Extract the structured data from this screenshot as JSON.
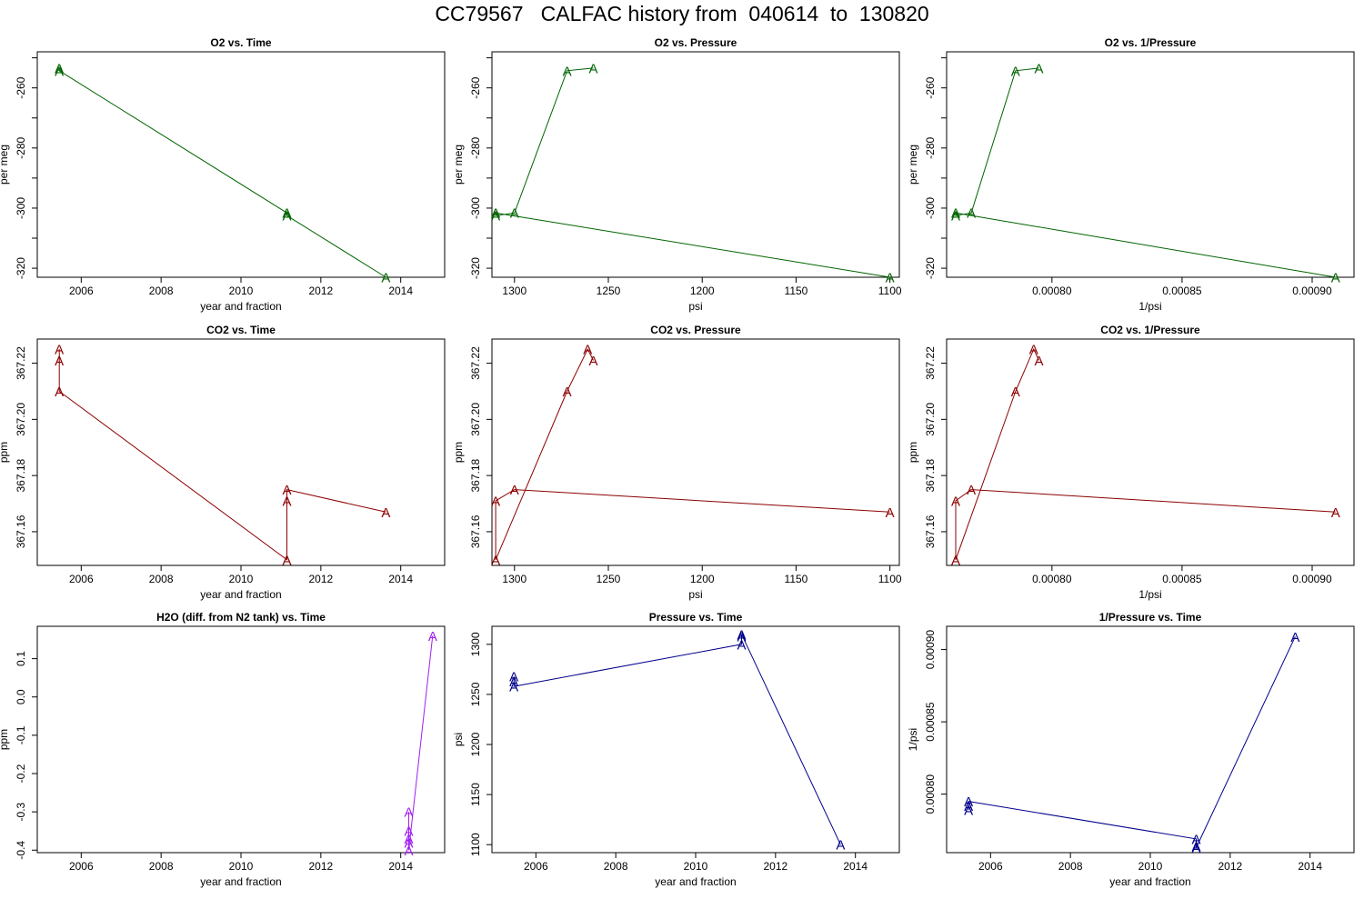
{
  "title": "CC79567   CALFAC history from  040614  to  130820",
  "colors": {
    "o2": "#006400",
    "co2": "#8b0000",
    "h2o": "#a020f0",
    "pressure": "#00008b",
    "axis": "#000000"
  },
  "marker_label": "A",
  "chart_data": [
    {
      "type": "line",
      "title": "O2 vs. Time",
      "xlabel": "year and fraction",
      "ylabel": "per meg",
      "xlim": [
        2004.9,
        2015.1
      ],
      "ylim": [
        -323,
        -248
      ],
      "reversed_x": false,
      "color_key": "o2",
      "xticks": [
        2006,
        2008,
        2010,
        2012,
        2014
      ],
      "xtick_labels": [
        "2006",
        "2008",
        "2010",
        "2012",
        "2014"
      ],
      "yticks": [
        -260,
        -280,
        -300,
        -320
      ],
      "ytick_labels": [
        "-260",
        "-280",
        "-300",
        "-320"
      ],
      "yminor": [
        -250,
        -270,
        -290,
        -310
      ],
      "x": [
        2005.45,
        2005.45,
        2011.15,
        2011.15,
        2013.63
      ],
      "y": [
        -253.4,
        -254.3,
        -301.6,
        -302.5,
        -323
      ]
    },
    {
      "type": "line",
      "title": "O2 vs. Pressure",
      "xlabel": "psi",
      "ylabel": "per meg",
      "xlim": [
        1312,
        1095
      ],
      "ylim": [
        -323,
        -248
      ],
      "reversed_x": true,
      "color_key": "o2",
      "xticks": [
        1300,
        1250,
        1200,
        1150,
        1100
      ],
      "xtick_labels": [
        "1300",
        "1250",
        "1200",
        "1150",
        "1100"
      ],
      "yticks": [
        -260,
        -280,
        -300,
        -320
      ],
      "ytick_labels": [
        "-260",
        "-280",
        "-300",
        "-320"
      ],
      "yminor": [
        -250,
        -270,
        -290,
        -310
      ],
      "x": [
        1258,
        1272,
        1300,
        1310,
        1310,
        1100
      ],
      "y": [
        -253.4,
        -254.3,
        -301.6,
        -302.5,
        -301.6,
        -323
      ]
    },
    {
      "type": "line",
      "title": "O2 vs. 1/Pressure",
      "xlabel": "1/psi",
      "ylabel": "per meg",
      "xlim": [
        0.00075952,
        0.00091608
      ],
      "ylim": [
        -323,
        -248
      ],
      "reversed_x": false,
      "color_key": "o2",
      "xticks": [
        0.0008,
        0.00085,
        0.0009
      ],
      "xtick_labels": [
        "0.00080",
        "0.00085",
        "0.00090"
      ],
      "yticks": [
        -260,
        -280,
        -300,
        -320
      ],
      "ytick_labels": [
        "-260",
        "-280",
        "-300",
        "-320"
      ],
      "yminor": [
        -250,
        -270,
        -290,
        -310
      ],
      "x": [
        0.000795,
        0.000786,
        0.000769,
        0.000763,
        0.000763,
        0.000909
      ],
      "y": [
        -253.4,
        -254.3,
        -301.6,
        -302.5,
        -301.6,
        -323
      ]
    },
    {
      "type": "line",
      "title": "CO2 vs. Time",
      "xlabel": "year and fraction",
      "ylabel": "ppm",
      "xlim": [
        2004.9,
        2015.1
      ],
      "ylim": [
        367.148,
        367.2286
      ],
      "reversed_x": false,
      "color_key": "co2",
      "xticks": [
        2006,
        2008,
        2010,
        2012,
        2014
      ],
      "xtick_labels": [
        "2006",
        "2008",
        "2010",
        "2012",
        "2014"
      ],
      "yticks": [
        367.16,
        367.18,
        367.2,
        367.22
      ],
      "ytick_labels": [
        "367.16",
        "367.18",
        "367.20",
        "367.22"
      ],
      "yminor": [],
      "x": [
        2005.45,
        2005.45,
        2005.45,
        2011.15,
        2011.15,
        2011.15,
        2013.63
      ],
      "y": [
        367.225,
        367.221,
        367.21,
        367.15,
        367.171,
        367.175,
        367.167
      ]
    },
    {
      "type": "line",
      "title": "CO2 vs. Pressure",
      "xlabel": "psi",
      "ylabel": "ppm",
      "xlim": [
        1312,
        1095
      ],
      "ylim": [
        367.148,
        367.2286
      ],
      "reversed_x": true,
      "color_key": "co2",
      "xticks": [
        1300,
        1250,
        1200,
        1150,
        1100
      ],
      "xtick_labels": [
        "1300",
        "1250",
        "1200",
        "1150",
        "1100"
      ],
      "yticks": [
        367.16,
        367.18,
        367.2,
        367.22
      ],
      "ytick_labels": [
        "367.16",
        "367.18",
        "367.20",
        "367.22"
      ],
      "yminor": [],
      "x": [
        1258,
        1261,
        1272,
        1310,
        1310,
        1300,
        1100
      ],
      "y": [
        367.221,
        367.225,
        367.21,
        367.15,
        367.171,
        367.175,
        367.167
      ]
    },
    {
      "type": "line",
      "title": "CO2 vs. 1/Pressure",
      "xlabel": "1/psi",
      "ylabel": "ppm",
      "xlim": [
        0.00075952,
        0.00091608
      ],
      "ylim": [
        367.148,
        367.2286
      ],
      "reversed_x": false,
      "color_key": "co2",
      "xticks": [
        0.0008,
        0.00085,
        0.0009
      ],
      "xtick_labels": [
        "0.00080",
        "0.00085",
        "0.00090"
      ],
      "yticks": [
        367.16,
        367.18,
        367.2,
        367.22
      ],
      "ytick_labels": [
        "367.16",
        "367.18",
        "367.20",
        "367.22"
      ],
      "yminor": [],
      "x": [
        0.000795,
        0.000793,
        0.000786,
        0.000763,
        0.000763,
        0.000769,
        0.000909
      ],
      "y": [
        367.221,
        367.225,
        367.21,
        367.15,
        367.171,
        367.175,
        367.167
      ]
    },
    {
      "type": "line",
      "title": "H2O (diff. from N2 tank) vs. Time",
      "xlabel": "year and fraction",
      "ylabel": "ppm",
      "xlim": [
        2004.9,
        2015.1
      ],
      "ylim": [
        -0.4065,
        0.1845
      ],
      "reversed_x": false,
      "color_key": "h2o",
      "xticks": [
        2006,
        2008,
        2010,
        2012,
        2014
      ],
      "xtick_labels": [
        "2006",
        "2008",
        "2010",
        "2012",
        "2014"
      ],
      "yticks": [
        -0.4,
        -0.3,
        -0.2,
        -0.1,
        0.0,
        0.1
      ],
      "ytick_labels": [
        "-0.4",
        "-0.3",
        "-0.2",
        "-0.1",
        "0.0",
        "0.1"
      ],
      "yminor": [],
      "x": [
        2014.2,
        2014.2,
        2014.2,
        2014.2,
        2014.2,
        2014.8
      ],
      "y": [
        -0.3,
        -0.35,
        -0.37,
        -0.38,
        -0.4,
        0.16
      ]
    },
    {
      "type": "line",
      "title": "Pressure vs. Time",
      "xlabel": "year and fraction",
      "ylabel": "psi",
      "xlim": [
        2004.9,
        2015.1
      ],
      "ylim": [
        1092,
        1318
      ],
      "reversed_x": false,
      "color_key": "pressure",
      "xticks": [
        2006,
        2008,
        2010,
        2012,
        2014
      ],
      "xtick_labels": [
        "2006",
        "2008",
        "2010",
        "2012",
        "2014"
      ],
      "yticks": [
        1100,
        1150,
        1200,
        1250,
        1300
      ],
      "ytick_labels": [
        "1100",
        "1150",
        "1200",
        "1250",
        "1300"
      ],
      "yminor": [],
      "x": [
        2005.45,
        2005.45,
        2005.45,
        2011.15,
        2011.15,
        2011.15,
        2013.63
      ],
      "y": [
        1268,
        1263,
        1258,
        1300,
        1308,
        1310,
        1100
      ]
    },
    {
      "type": "line",
      "title": "1/Pressure vs. Time",
      "xlabel": "year and fraction",
      "ylabel": "1/psi",
      "xlim": [
        2004.9,
        2015.1
      ],
      "ylim": [
        0.00075952,
        0.00091608
      ],
      "reversed_x": false,
      "color_key": "pressure",
      "xticks": [
        2006,
        2008,
        2010,
        2012,
        2014
      ],
      "xtick_labels": [
        "2006",
        "2008",
        "2010",
        "2012",
        "2014"
      ],
      "yticks": [
        0.0008,
        0.00085,
        0.0009
      ],
      "ytick_labels": [
        "0.00080",
        "0.00085",
        "0.00090"
      ],
      "yminor": [],
      "x": [
        2005.45,
        2005.45,
        2005.45,
        2011.15,
        2011.15,
        2011.15,
        2013.63
      ],
      "y": [
        0.000789,
        0.000792,
        0.000795,
        0.000769,
        0.000764,
        0.000763,
        0.000909
      ]
    }
  ]
}
